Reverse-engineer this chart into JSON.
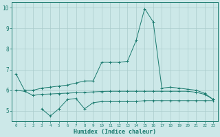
{
  "x": [
    0,
    1,
    2,
    3,
    4,
    5,
    6,
    7,
    8,
    9,
    10,
    11,
    12,
    13,
    14,
    15,
    16,
    17,
    18,
    19,
    20,
    21,
    22,
    23
  ],
  "line1": [
    6.8,
    6.0,
    6.0,
    6.1,
    6.15,
    6.2,
    6.25,
    6.35,
    6.45,
    6.45,
    7.35,
    7.35,
    7.35,
    7.4,
    8.4,
    9.95,
    9.3,
    6.1,
    6.15,
    6.1,
    6.05,
    6.0,
    5.85,
    5.55
  ],
  "line2": [
    6.0,
    5.95,
    5.75,
    5.8,
    5.82,
    5.84,
    5.86,
    5.88,
    5.9,
    5.92,
    5.94,
    5.95,
    5.95,
    5.95,
    5.95,
    5.95,
    5.95,
    5.95,
    5.95,
    5.95,
    5.95,
    5.9,
    5.8,
    5.55
  ],
  "line3": [
    null,
    null,
    null,
    5.1,
    4.75,
    5.1,
    5.55,
    5.6,
    5.1,
    5.4,
    5.45,
    5.45,
    5.45,
    5.45,
    5.45,
    5.5,
    5.5,
    5.5,
    5.5,
    5.5,
    5.5,
    5.5,
    5.5,
    5.5
  ],
  "color": "#1a7a6e",
  "bg_color": "#cce8e8",
  "grid_color": "#aacccc",
  "ylim": [
    4.5,
    10.25
  ],
  "xlim": [
    -0.5,
    23.5
  ],
  "yticks": [
    5,
    6,
    7,
    8,
    9,
    10
  ],
  "xticks": [
    0,
    1,
    2,
    3,
    4,
    5,
    6,
    7,
    8,
    9,
    10,
    11,
    12,
    13,
    14,
    15,
    16,
    17,
    18,
    19,
    20,
    21,
    22,
    23
  ],
  "xlabel": "Humidex (Indice chaleur)"
}
